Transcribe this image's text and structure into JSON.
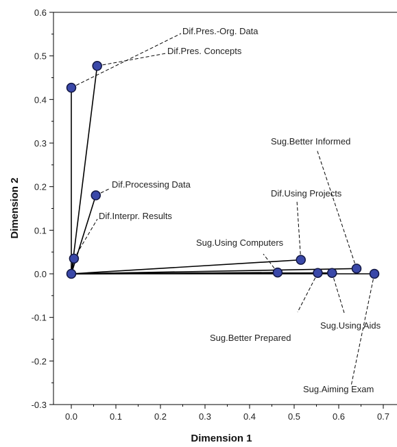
{
  "chart_data": {
    "type": "scatter",
    "title": "",
    "xlabel": "Dimension 1",
    "ylabel": "Dimension 2",
    "xlim": [
      -0.04,
      0.76
    ],
    "ylim": [
      -0.3,
      0.6
    ],
    "xticks": [
      "0.0",
      "0.1",
      "0.2",
      "0.3",
      "0.4",
      "0.5",
      "0.6",
      "0.7"
    ],
    "yticks": [
      "-0.3",
      "-0.2",
      "-0.1",
      "0.0",
      "0.1",
      "0.2",
      "0.3",
      "0.4",
      "0.5",
      "0.6"
    ],
    "grid": false,
    "legend": "none",
    "point_color": "#3a48a8",
    "origin": [
      0.0,
      0.0
    ],
    "points": [
      {
        "label": "Dif.Pres.-Org. Data",
        "x": 0.0,
        "y": 0.427
      },
      {
        "label": "Dif.Pres. Concepts",
        "x": 0.058,
        "y": 0.477
      },
      {
        "label": "Dif.Processing Data",
        "x": 0.055,
        "y": 0.18
      },
      {
        "label": "Dif.Interpr. Results",
        "x": 0.006,
        "y": 0.035
      },
      {
        "label": "Sug.Using Computers",
        "x": 0.463,
        "y": 0.003
      },
      {
        "label": "Dif.Using Projects",
        "x": 0.515,
        "y": 0.032
      },
      {
        "label": "Sug.Better Informed",
        "x": 0.64,
        "y": 0.012
      },
      {
        "label": "Sug.Better Prepared",
        "x": 0.553,
        "y": 0.002
      },
      {
        "label": "Sug.Using Aids",
        "x": 0.585,
        "y": 0.002
      },
      {
        "label": "Sug.Aiming Exam",
        "x": 0.68,
        "y": 0.0
      }
    ]
  }
}
